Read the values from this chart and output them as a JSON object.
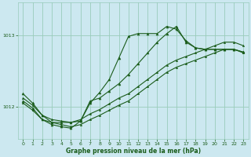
{
  "background_color": "#cce8f0",
  "grid_color": "#99ccbb",
  "line_color": "#1a5c1a",
  "marker_color": "#1a5c1a",
  "xlabel": "Graphe pression niveau de la mer (hPa)",
  "xlim": [
    -0.5,
    23.5
  ],
  "ylim": [
    1011.55,
    1013.45
  ],
  "yticks": [
    1012,
    1013
  ],
  "xticks": [
    0,
    1,
    2,
    3,
    4,
    5,
    6,
    7,
    8,
    9,
    10,
    11,
    12,
    13,
    14,
    15,
    16,
    17,
    18,
    19,
    20,
    21,
    22,
    23
  ],
  "s1_x": [
    0,
    1,
    2,
    3,
    4,
    5,
    6,
    7,
    8,
    9,
    10,
    11,
    12,
    13,
    14,
    15,
    16,
    17,
    18,
    19,
    20,
    21,
    22,
    23
  ],
  "s1_y": [
    1012.05,
    1011.95,
    1011.82,
    1011.78,
    1011.75,
    1011.72,
    1011.75,
    1011.82,
    1011.88,
    1011.95,
    1012.02,
    1012.08,
    1012.18,
    1012.28,
    1012.38,
    1012.48,
    1012.55,
    1012.6,
    1012.65,
    1012.7,
    1012.75,
    1012.8,
    1012.8,
    1012.75
  ],
  "s2_x": [
    0,
    1,
    2,
    3,
    4,
    5,
    6,
    7,
    8,
    9,
    10,
    11,
    12,
    13,
    14,
    15,
    16,
    17,
    18,
    19,
    20,
    21,
    22,
    23
  ],
  "s2_y": [
    1012.12,
    1012.02,
    1011.88,
    1011.82,
    1011.8,
    1011.78,
    1011.82,
    1011.9,
    1011.96,
    1012.04,
    1012.12,
    1012.18,
    1012.28,
    1012.38,
    1012.48,
    1012.58,
    1012.65,
    1012.7,
    1012.75,
    1012.8,
    1012.85,
    1012.9,
    1012.9,
    1012.85
  ],
  "s3_x": [
    0,
    1,
    2,
    3,
    4,
    5,
    6,
    7,
    8,
    9,
    10,
    11,
    12,
    13,
    14,
    15,
    16,
    17,
    18,
    19,
    20,
    21,
    22,
    23
  ],
  "s3_y": [
    1012.08,
    1011.98,
    1011.82,
    1011.75,
    1011.72,
    1011.7,
    1011.8,
    1012.05,
    1012.2,
    1012.38,
    1012.68,
    1012.98,
    1013.02,
    1013.02,
    1013.02,
    1013.12,
    1013.08,
    1012.92,
    1012.82,
    1012.8,
    1012.8,
    1012.8,
    1012.8,
    1012.76
  ],
  "s4_x": [
    0,
    1,
    2,
    3,
    4,
    5,
    6,
    7,
    8,
    9,
    10,
    11,
    12,
    13,
    14,
    15,
    16,
    17,
    18,
    19,
    20,
    21,
    22,
    23
  ],
  "s4_y": [
    1012.18,
    1012.05,
    1011.88,
    1011.78,
    1011.78,
    1011.78,
    1011.8,
    1012.08,
    1012.12,
    1012.22,
    1012.32,
    1012.45,
    1012.6,
    1012.75,
    1012.9,
    1013.02,
    1013.12,
    1012.9,
    1012.82,
    1012.8,
    1012.8,
    1012.8,
    1012.8,
    1012.76
  ]
}
